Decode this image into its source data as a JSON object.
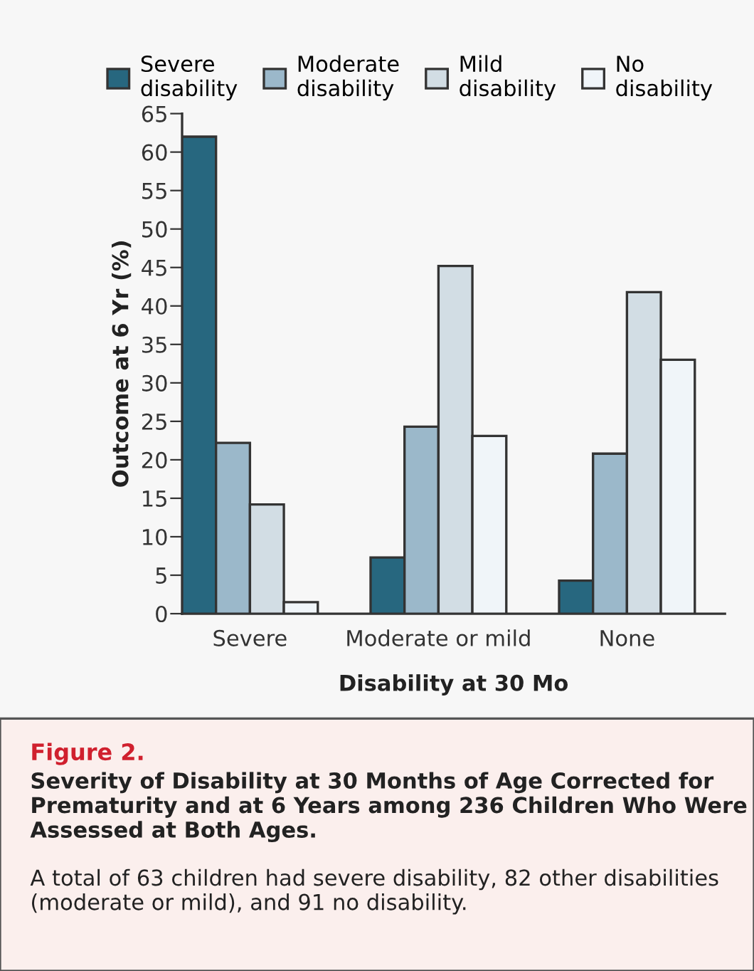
{
  "chart_data": {
    "type": "bar",
    "title": "Figure 2.",
    "subtitle": "Severity of Disability at 30 Months of Age Corrected for Prematurity and at 6 Years among 236 Children Who Were Assessed at Both Ages.",
    "xlabel": "Disability at 30 Mo",
    "ylabel": "Outcome at 6 Yr (%)",
    "categories": [
      "Severe",
      "Moderate or mild",
      "None"
    ],
    "series": [
      {
        "name": "Severe disability",
        "color": "#27677f",
        "values": [
          62,
          7.3,
          4.3
        ]
      },
      {
        "name": "Moderate disability",
        "color": "#9bb8ca",
        "values": [
          22.2,
          24.3,
          20.8
        ]
      },
      {
        "name": "Mild disability",
        "color": "#d2dde4",
        "values": [
          14.2,
          45.2,
          41.8
        ]
      },
      {
        "name": "No disability",
        "color": "#f0f5f9",
        "values": [
          1.5,
          23.1,
          33.0
        ]
      }
    ],
    "ylim": [
      0,
      65
    ],
    "yticks": [
      0,
      5,
      10,
      15,
      20,
      25,
      30,
      35,
      40,
      45,
      50,
      55,
      60,
      65
    ],
    "grid": false,
    "legend": "top",
    "annotations": [
      "A total of 63 children had severe disability, 82 other disabilities (moderate or mild), and 91 no disability."
    ]
  }
}
